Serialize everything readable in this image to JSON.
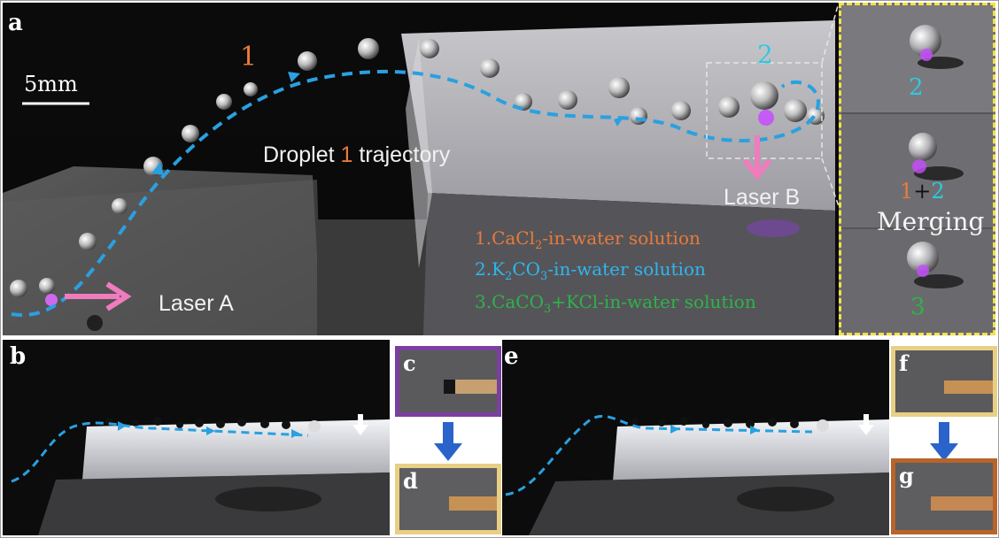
{
  "panel_labels": {
    "a": "a",
    "b": "b",
    "c": "c",
    "d": "d",
    "e": "e",
    "f": "f",
    "g": "g"
  },
  "panel_a": {
    "scale_bar": "5mm",
    "droplet_1_marker": "1",
    "droplet_2_marker": "2",
    "trajectory_word1": "Droplet",
    "trajectory_num": "1",
    "trajectory_word2": "trajectory",
    "laser_a": "Laser A",
    "laser_b": "Laser B",
    "legend_1_pre": "1.CaCl",
    "legend_1_sub": "2",
    "legend_1_post": "-in-water solution",
    "legend_2_pre": "2.K",
    "legend_2_sub1": "2",
    "legend_2_mid": "CO",
    "legend_2_sub2": "3",
    "legend_2_post": "-in-water solution",
    "legend_3_pre": "3.CaCO",
    "legend_3_sub": "3",
    "legend_3_post": "+KCl-in-water solution"
  },
  "inset": {
    "top_num": "2",
    "mid_num1": "1",
    "mid_plus": "+",
    "mid_num2": "2",
    "merging": "Merging",
    "bottom_num": "3"
  },
  "colors": {
    "orange": "#e87a3c",
    "cyan": "#2fc9e0",
    "blue_trajectory": "#2aa0e0",
    "green": "#2fb24a",
    "pink": "#f07bbd",
    "yellow_frame": "#f0e04a",
    "purple_frame": "#7b3f9e",
    "tan_frame": "#e9cf85",
    "brown_frame": "#b8642a",
    "arrow_blue": "#2a63c9"
  }
}
